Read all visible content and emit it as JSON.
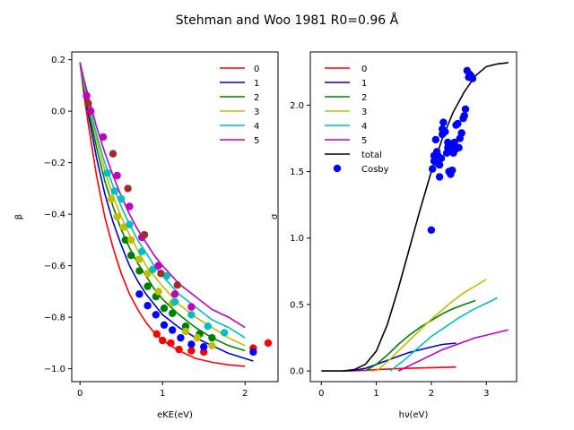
{
  "figure": {
    "title": "Stehman and Woo 1981 R0=0.96 Å"
  },
  "chart_data": [
    {
      "type": "line",
      "xlabel": "eKE(eV)",
      "ylabel": "β",
      "xlim": [
        -0.1,
        2.4
      ],
      "ylim": [
        -1.05,
        0.23
      ],
      "xticks": [
        0,
        1,
        2
      ],
      "yticks": [
        -1.0,
        -0.8,
        -0.6,
        -0.4,
        -0.2,
        0.0,
        0.2
      ],
      "ytick_labels": [
        "−1.0",
        "−0.8",
        "−0.6",
        "−0.4",
        "−0.2",
        "0.0",
        "0.2"
      ],
      "legend_position": "top-right",
      "grid": false,
      "series": [
        {
          "name": "0",
          "color": "#ff0000",
          "x": [
            0,
            0.05,
            0.1,
            0.2,
            0.3,
            0.4,
            0.5,
            0.6,
            0.7,
            0.8,
            0.9,
            1.0,
            1.2,
            1.4,
            1.6,
            1.8,
            2.0
          ],
          "y": [
            0.19,
            0.06,
            -0.05,
            -0.25,
            -0.41,
            -0.53,
            -0.63,
            -0.71,
            -0.77,
            -0.82,
            -0.86,
            -0.89,
            -0.93,
            -0.96,
            -0.975,
            -0.985,
            -0.99
          ]
        },
        {
          "name": "1",
          "color": "#0000cc",
          "x": [
            0,
            0.05,
            0.1,
            0.2,
            0.3,
            0.4,
            0.5,
            0.6,
            0.7,
            0.8,
            0.9,
            1.0,
            1.2,
            1.4,
            1.6,
            1.8,
            2.0,
            2.1
          ],
          "y": [
            0.19,
            0.08,
            -0.01,
            -0.18,
            -0.32,
            -0.43,
            -0.52,
            -0.6,
            -0.66,
            -0.71,
            -0.75,
            -0.79,
            -0.84,
            -0.88,
            -0.91,
            -0.94,
            -0.96,
            -0.97
          ]
        },
        {
          "name": "2",
          "color": "#008000",
          "x": [
            0,
            0.05,
            0.1,
            0.2,
            0.3,
            0.4,
            0.5,
            0.6,
            0.7,
            0.8,
            0.9,
            1.0,
            1.2,
            1.4,
            1.6,
            1.8,
            2.0
          ],
          "y": [
            0.19,
            0.09,
            0.01,
            -0.14,
            -0.27,
            -0.37,
            -0.46,
            -0.53,
            -0.59,
            -0.64,
            -0.69,
            -0.73,
            -0.79,
            -0.84,
            -0.88,
            -0.91,
            -0.93
          ]
        },
        {
          "name": "3",
          "color": "#bfbf00",
          "x": [
            0,
            0.05,
            0.1,
            0.2,
            0.3,
            0.4,
            0.5,
            0.6,
            0.7,
            0.8,
            0.9,
            1.0,
            1.2,
            1.4,
            1.6,
            1.8,
            2.0
          ],
          "y": [
            0.19,
            0.1,
            0.03,
            -0.11,
            -0.23,
            -0.33,
            -0.41,
            -0.48,
            -0.54,
            -0.6,
            -0.64,
            -0.68,
            -0.75,
            -0.8,
            -0.84,
            -0.88,
            -0.91
          ]
        },
        {
          "name": "4",
          "color": "#00bfbf",
          "x": [
            0,
            0.05,
            0.1,
            0.2,
            0.3,
            0.4,
            0.5,
            0.6,
            0.7,
            0.8,
            0.9,
            1.0,
            1.2,
            1.4,
            1.6,
            1.8,
            2.0
          ],
          "y": [
            0.19,
            0.11,
            0.04,
            -0.09,
            -0.2,
            -0.29,
            -0.37,
            -0.44,
            -0.5,
            -0.55,
            -0.6,
            -0.64,
            -0.71,
            -0.76,
            -0.81,
            -0.84,
            -0.88
          ]
        },
        {
          "name": "5",
          "color": "#bf00bf",
          "x": [
            0,
            0.05,
            0.1,
            0.2,
            0.3,
            0.4,
            0.5,
            0.6,
            0.7,
            0.8,
            0.9,
            1.0,
            1.2,
            1.4,
            1.6,
            1.8,
            2.0
          ],
          "y": [
            0.19,
            0.12,
            0.06,
            -0.06,
            -0.16,
            -0.25,
            -0.33,
            -0.4,
            -0.46,
            -0.51,
            -0.56,
            -0.6,
            -0.67,
            -0.72,
            -0.77,
            -0.8,
            -0.84
          ]
        }
      ],
      "scatter": [
        {
          "color": "#ff0000",
          "x": [
            0.93,
            1.0,
            1.1,
            1.2,
            1.35,
            1.5,
            2.1,
            2.28
          ],
          "y": [
            -0.865,
            -0.89,
            -0.9,
            -0.925,
            -0.93,
            -0.935,
            -0.92,
            -0.9
          ]
        },
        {
          "color": "#0000ff",
          "x": [
            0.72,
            0.82,
            0.92,
            1.02,
            1.12,
            1.22,
            1.35,
            1.5,
            2.1
          ],
          "y": [
            -0.71,
            -0.755,
            -0.79,
            -0.83,
            -0.85,
            -0.88,
            -0.905,
            -0.915,
            -0.935
          ]
        },
        {
          "color": "#008000",
          "x": [
            0.55,
            0.62,
            0.72,
            0.82,
            0.92,
            1.02,
            1.12,
            1.28,
            1.45,
            1.6
          ],
          "y": [
            -0.5,
            -0.56,
            -0.62,
            -0.68,
            -0.72,
            -0.765,
            -0.785,
            -0.835,
            -0.865,
            -0.88
          ]
        },
        {
          "color": "#bfbf00",
          "x": [
            0.38,
            0.45,
            0.53,
            0.62,
            0.72,
            0.82,
            0.95,
            1.12,
            1.28,
            1.42,
            1.6
          ],
          "y": [
            -0.34,
            -0.41,
            -0.45,
            -0.5,
            -0.575,
            -0.63,
            -0.7,
            -0.745,
            -0.855,
            -0.88,
            -0.91
          ]
        },
        {
          "color": "#00bfbf",
          "x": [
            0.33,
            0.42,
            0.5,
            0.6,
            0.75,
            0.88,
            1.05,
            1.15,
            1.35,
            1.55,
            1.75
          ],
          "y": [
            -0.24,
            -0.31,
            -0.34,
            -0.44,
            -0.545,
            -0.615,
            -0.64,
            -0.74,
            -0.79,
            -0.835,
            -0.86
          ]
        },
        {
          "color": "#bf00bf",
          "x": [
            0.08,
            0.13,
            0.28,
            0.45,
            0.6,
            0.75,
            0.95,
            1.15,
            1.35
          ],
          "y": [
            0.06,
            0.0,
            -0.1,
            -0.25,
            -0.37,
            -0.49,
            -0.6,
            -0.71,
            -0.76
          ]
        },
        {
          "color": "#a52a2a",
          "x": [
            0.1,
            0.4,
            0.58,
            0.78,
            0.98,
            1.18
          ],
          "y": [
            0.03,
            -0.165,
            -0.3,
            -0.48,
            -0.63,
            -0.675
          ]
        }
      ]
    },
    {
      "type": "line",
      "xlabel": "hν(eV)",
      "ylabel": "σ",
      "xlim": [
        -0.2,
        3.55
      ],
      "ylim": [
        -0.08,
        2.4
      ],
      "xticks": [
        0,
        1,
        2,
        3
      ],
      "yticks": [
        0.0,
        0.5,
        1.0,
        1.5,
        2.0
      ],
      "ytick_labels": [
        "0.0",
        "0.5",
        "1.0",
        "1.5",
        "2.0"
      ],
      "legend_position": "top-left",
      "grid": false,
      "series": [
        {
          "name": "0",
          "color": "#ff0000",
          "x": [
            0.5,
            0.8,
            1.0,
            1.5,
            2.0,
            2.45
          ],
          "y": [
            0.0,
            0.005,
            0.01,
            0.02,
            0.025,
            0.03
          ]
        },
        {
          "name": "1",
          "color": "#0000cc",
          "x": [
            0.4,
            0.6,
            0.8,
            1.0,
            1.2,
            1.4,
            1.6,
            1.8,
            2.0,
            2.2,
            2.45
          ],
          "y": [
            0.0,
            0.005,
            0.02,
            0.05,
            0.08,
            0.11,
            0.14,
            0.16,
            0.18,
            0.2,
            0.21
          ]
        },
        {
          "name": "2",
          "color": "#008000",
          "x": [
            0.8,
            1.0,
            1.2,
            1.4,
            1.6,
            1.8,
            2.0,
            2.2,
            2.4,
            2.6,
            2.8
          ],
          "y": [
            0.0,
            0.05,
            0.12,
            0.2,
            0.27,
            0.33,
            0.38,
            0.43,
            0.47,
            0.5,
            0.53
          ]
        },
        {
          "name": "3",
          "color": "#bfbf00",
          "x": [
            1.0,
            1.2,
            1.4,
            1.6,
            1.8,
            2.0,
            2.2,
            2.4,
            2.6,
            2.8,
            3.0
          ],
          "y": [
            0.0,
            0.07,
            0.15,
            0.23,
            0.31,
            0.39,
            0.46,
            0.53,
            0.59,
            0.64,
            0.69
          ]
        },
        {
          "name": "4",
          "color": "#00bfbf",
          "x": [
            1.25,
            1.5,
            1.75,
            2.0,
            2.25,
            2.5,
            2.75,
            3.0,
            3.2
          ],
          "y": [
            0.0,
            0.08,
            0.17,
            0.26,
            0.33,
            0.4,
            0.46,
            0.51,
            0.55
          ]
        },
        {
          "name": "5",
          "color": "#bf00bf",
          "x": [
            1.4,
            1.6,
            1.8,
            2.0,
            2.2,
            2.4,
            2.6,
            2.8,
            3.0,
            3.2,
            3.4
          ],
          "y": [
            0.0,
            0.04,
            0.08,
            0.12,
            0.16,
            0.19,
            0.22,
            0.25,
            0.27,
            0.29,
            0.31
          ]
        },
        {
          "name": "total",
          "color": "#000000",
          "x": [
            0,
            0.4,
            0.6,
            0.8,
            1.0,
            1.2,
            1.4,
            1.6,
            1.8,
            2.0,
            2.2,
            2.4,
            2.6,
            2.8,
            3.0,
            3.2,
            3.4
          ],
          "y": [
            0.0,
            0.0,
            0.01,
            0.05,
            0.15,
            0.35,
            0.62,
            0.92,
            1.22,
            1.5,
            1.75,
            1.95,
            2.1,
            2.22,
            2.29,
            2.31,
            2.32
          ]
        }
      ],
      "scatter": [
        {
          "name": "Cosby",
          "color": "#0000ff",
          "x": [
            2.0,
            2.02,
            2.05,
            2.08,
            2.1,
            2.12,
            2.15,
            2.18,
            2.2,
            2.22,
            2.25,
            2.28,
            2.3,
            2.32,
            2.35,
            2.38,
            2.4,
            2.42,
            2.45,
            2.48,
            2.5,
            2.52,
            2.55,
            2.58,
            2.6,
            2.62,
            2.65,
            2.68,
            2.7,
            2.72,
            2.75,
            2.12,
            2.2,
            2.3,
            2.4,
            2.05,
            2.15,
            2.35,
            2.45
          ],
          "y": [
            1.06,
            1.52,
            1.58,
            1.74,
            1.65,
            1.56,
            1.46,
            1.6,
            1.78,
            1.87,
            1.8,
            1.64,
            1.68,
            1.5,
            1.48,
            1.51,
            1.64,
            1.72,
            1.67,
            1.86,
            1.68,
            1.75,
            1.79,
            1.9,
            1.92,
            1.97,
            2.26,
            2.21,
            2.23,
            2.22,
            2.2,
            1.62,
            1.82,
            1.72,
            1.7,
            1.62,
            1.55,
            1.66,
            1.85
          ]
        }
      ]
    }
  ]
}
